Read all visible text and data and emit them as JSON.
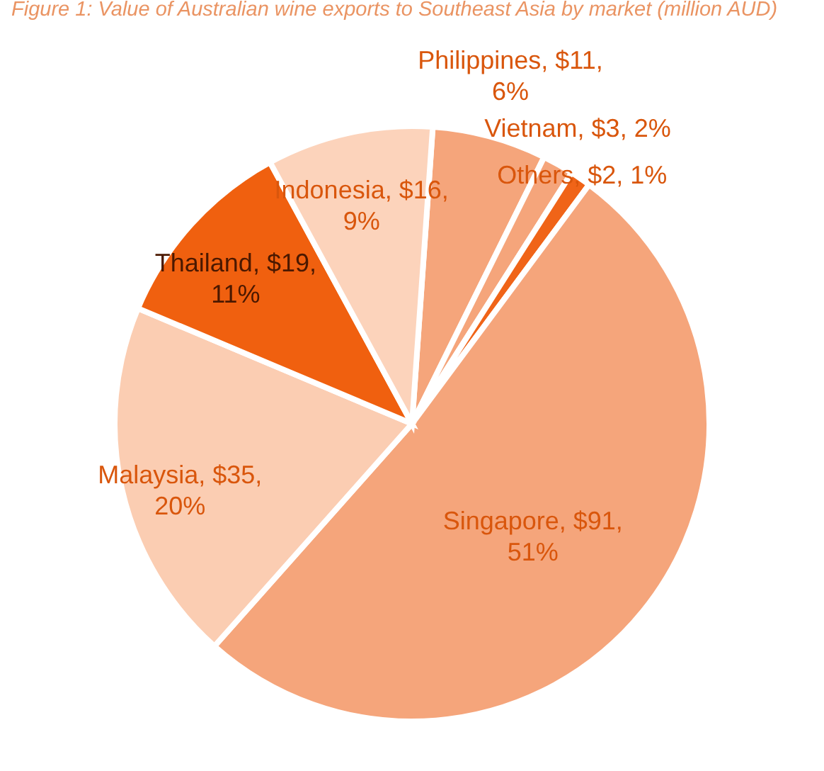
{
  "chart_data": {
    "type": "pie",
    "title": "Figure 1: Value of Australian wine exports to Southeast Asia by market (million AUD)",
    "categories": [
      "Philippines",
      "Vietnam",
      "Others",
      "Singapore",
      "Malaysia",
      "Thailand",
      "Indonesia"
    ],
    "values": [
      11,
      3,
      2,
      91,
      35,
      19,
      16
    ],
    "colors": [
      "#f5a57b",
      "#f5a57b",
      "#f06418",
      "#f5a57b",
      "#fbcdb2",
      "#f0600f",
      "#fcd3bb"
    ],
    "value_labels": [
      "$11, 6%",
      "$3, 2%",
      "$2, 1%",
      "$91, 51%",
      "$35, 20%",
      "$19, 11%",
      "$16, 9%"
    ]
  }
}
